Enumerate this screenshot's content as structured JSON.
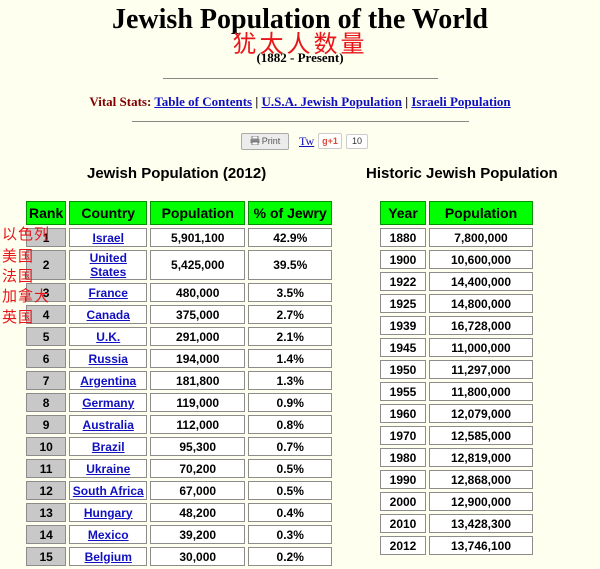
{
  "page": {
    "title": "Jewish Population of the World",
    "title_cn": "犹太人数量",
    "subtitle": "(1882 - Present)"
  },
  "nav": {
    "label": "Vital Stats:",
    "links": [
      "Table of Contents",
      "U.S.A. Jewish Population",
      "Israeli Population"
    ],
    "separator": "|"
  },
  "share": {
    "print": "Print",
    "tweet": "Tw",
    "gplus": "g+1",
    "count": "10"
  },
  "population_table": {
    "heading": "Jewish Population (2012)",
    "columns": [
      "Rank",
      "Country",
      "Population",
      "% of Jewry"
    ],
    "rows": [
      [
        "1",
        "Israel",
        "5,901,100",
        "42.9%"
      ],
      [
        "2",
        "United States",
        "5,425,000",
        "39.5%"
      ],
      [
        "3",
        "France",
        "480,000",
        "3.5%"
      ],
      [
        "4",
        "Canada",
        "375,000",
        "2.7%"
      ],
      [
        "5",
        "U.K.",
        "291,000",
        "2.1%"
      ],
      [
        "6",
        "Russia",
        "194,000",
        "1.4%"
      ],
      [
        "7",
        "Argentina",
        "181,800",
        "1.3%"
      ],
      [
        "8",
        "Germany",
        "119,000",
        "0.9%"
      ],
      [
        "9",
        "Australia",
        "112,000",
        "0.8%"
      ],
      [
        "10",
        "Brazil",
        "95,300",
        "0.7%"
      ],
      [
        "11",
        "Ukraine",
        "70,200",
        "0.5%"
      ],
      [
        "12",
        "South Africa",
        "67,000",
        "0.5%"
      ],
      [
        "13",
        "Hungary",
        "48,200",
        "0.4%"
      ],
      [
        "14",
        "Mexico",
        "39,200",
        "0.3%"
      ],
      [
        "15",
        "Belgium",
        "30,000",
        "0.2%"
      ]
    ]
  },
  "historic_table": {
    "heading": "Historic Jewish Population",
    "columns": [
      "Year",
      "Population"
    ],
    "rows": [
      [
        "1880",
        "7,800,000"
      ],
      [
        "1900",
        "10,600,000"
      ],
      [
        "1922",
        "14,400,000"
      ],
      [
        "1925",
        "14,800,000"
      ],
      [
        "1939",
        "16,728,000"
      ],
      [
        "1945",
        "11,000,000"
      ],
      [
        "1950",
        "11,297,000"
      ],
      [
        "1955",
        "11,800,000"
      ],
      [
        "1960",
        "12,079,000"
      ],
      [
        "1970",
        "12,585,000"
      ],
      [
        "1980",
        "12,819,000"
      ],
      [
        "1990",
        "12,868,000"
      ],
      [
        "2000",
        "12,900,000"
      ],
      [
        "2010",
        "13,428,300"
      ],
      [
        "2012",
        "13,746,100"
      ]
    ]
  },
  "annotations_cn": [
    "以色列",
    "美国",
    "法国",
    "加拿大",
    "英国"
  ],
  "colors": {
    "header_green": "#00ff00",
    "annotation_red": "#e8161b",
    "link_blue": "#1010c0",
    "label_maroon": "#800000"
  }
}
